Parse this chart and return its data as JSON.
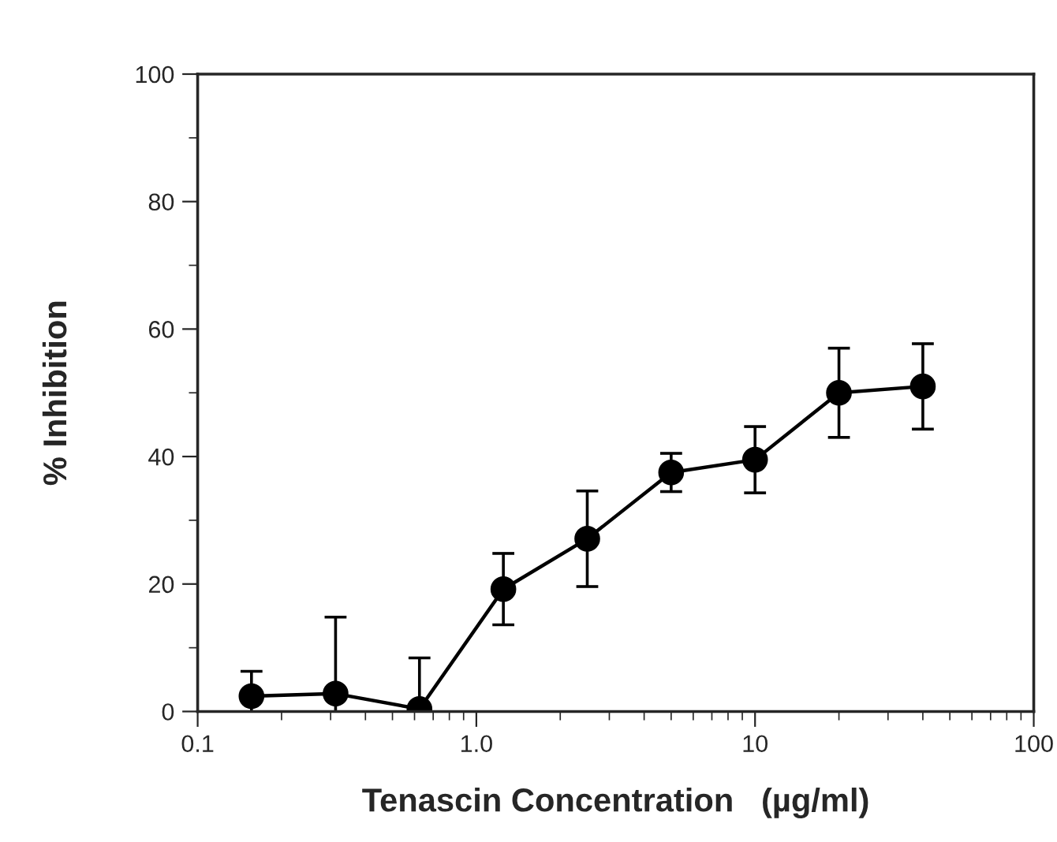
{
  "chart_data": {
    "type": "line",
    "xlabel": "Tenascin Concentration   (µg/ml)",
    "ylabel": "% Inhibition",
    "x": [
      0.156,
      0.3125,
      0.625,
      1.25,
      2.5,
      5,
      10,
      20,
      40
    ],
    "series": [
      {
        "color": "#000000",
        "values": [
          2.4,
          2.8,
          0.4,
          19.2,
          27.1,
          37.5,
          39.5,
          50.0,
          51.0
        ],
        "errors": [
          3.9,
          12,
          8,
          5.6,
          7.5,
          3,
          5.2,
          7,
          6.7
        ]
      }
    ],
    "log": "x",
    "xlim": [
      0.1,
      100
    ],
    "xticks": [
      0.1,
      {
        "value": 1,
        "label": "1.0"
      },
      10,
      100
    ],
    "ylim": [
      0,
      100
    ],
    "yticks": [
      0,
      20,
      40,
      60,
      80,
      100
    ],
    "grid": false,
    "legend": false,
    "marker": "circle",
    "line_style": "solid"
  }
}
